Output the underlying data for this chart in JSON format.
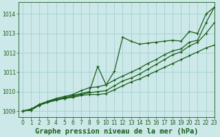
{
  "background_color": "#cce8e8",
  "plot_bg_color": "#cce8e8",
  "grid_color": "#99cccc",
  "line_color": "#1a5c1a",
  "title": "Graphe pression niveau de la mer (hPa)",
  "xlim": [
    -0.5,
    23
  ],
  "ylim": [
    1008.7,
    1014.6
  ],
  "yticks": [
    1009,
    1010,
    1011,
    1012,
    1013,
    1014
  ],
  "xticks": [
    0,
    1,
    2,
    3,
    4,
    5,
    6,
    7,
    8,
    9,
    10,
    11,
    12,
    13,
    14,
    15,
    16,
    17,
    18,
    19,
    20,
    21,
    22,
    23
  ],
  "series1_x": [
    0,
    1,
    2,
    3,
    4,
    5,
    6,
    7,
    8,
    9,
    10,
    11,
    12,
    13,
    14,
    15,
    16,
    17,
    18,
    19,
    20,
    21,
    22,
    23
  ],
  "series1_y": [
    1009.0,
    1009.05,
    1009.3,
    1009.45,
    1009.55,
    1009.65,
    1009.7,
    1009.8,
    1009.85,
    1009.85,
    1009.9,
    1010.1,
    1010.3,
    1010.5,
    1010.65,
    1010.85,
    1011.05,
    1011.25,
    1011.45,
    1011.65,
    1011.85,
    1012.05,
    1012.25,
    1012.4
  ],
  "series2_x": [
    0,
    1,
    2,
    3,
    4,
    5,
    6,
    7,
    8,
    9,
    10,
    11,
    12,
    13,
    14,
    15,
    16,
    17,
    18,
    19,
    20,
    21,
    22,
    23
  ],
  "series2_y": [
    1009.0,
    1009.05,
    1009.3,
    1009.45,
    1009.6,
    1009.65,
    1009.75,
    1009.85,
    1009.95,
    1010.0,
    1010.05,
    1010.3,
    1010.55,
    1010.7,
    1010.9,
    1011.15,
    1011.4,
    1011.65,
    1011.9,
    1012.05,
    1012.35,
    1012.55,
    1013.0,
    1013.55
  ],
  "series3_x": [
    0,
    1,
    2,
    3,
    4,
    5,
    6,
    7,
    8,
    9,
    10,
    11,
    12,
    13,
    14,
    15,
    16,
    17,
    18,
    19,
    20,
    21,
    22,
    23
  ],
  "series3_y": [
    1009.0,
    1009.1,
    1009.3,
    1009.5,
    1009.6,
    1009.7,
    1009.8,
    1009.9,
    1010.0,
    1011.3,
    1010.35,
    1011.05,
    1012.8,
    1012.6,
    1012.45,
    1012.5,
    1012.55,
    1012.6,
    1012.65,
    1012.6,
    1013.1,
    1013.0,
    1014.0,
    1014.35
  ],
  "series4_x": [
    0,
    1,
    2,
    3,
    4,
    5,
    6,
    7,
    8,
    9,
    10,
    11,
    12,
    13,
    14,
    15,
    16,
    17,
    18,
    19,
    20,
    21,
    22,
    23
  ],
  "series4_y": [
    1009.0,
    1009.1,
    1009.35,
    1009.5,
    1009.65,
    1009.75,
    1009.85,
    1010.05,
    1010.2,
    1010.25,
    1010.35,
    1010.6,
    1010.8,
    1011.0,
    1011.2,
    1011.45,
    1011.65,
    1011.9,
    1012.1,
    1012.2,
    1012.55,
    1012.65,
    1013.55,
    1014.35
  ],
  "marker": "+",
  "markersize": 3.5,
  "linewidth": 0.9,
  "title_fontsize": 7.5,
  "tick_fontsize": 5.5
}
